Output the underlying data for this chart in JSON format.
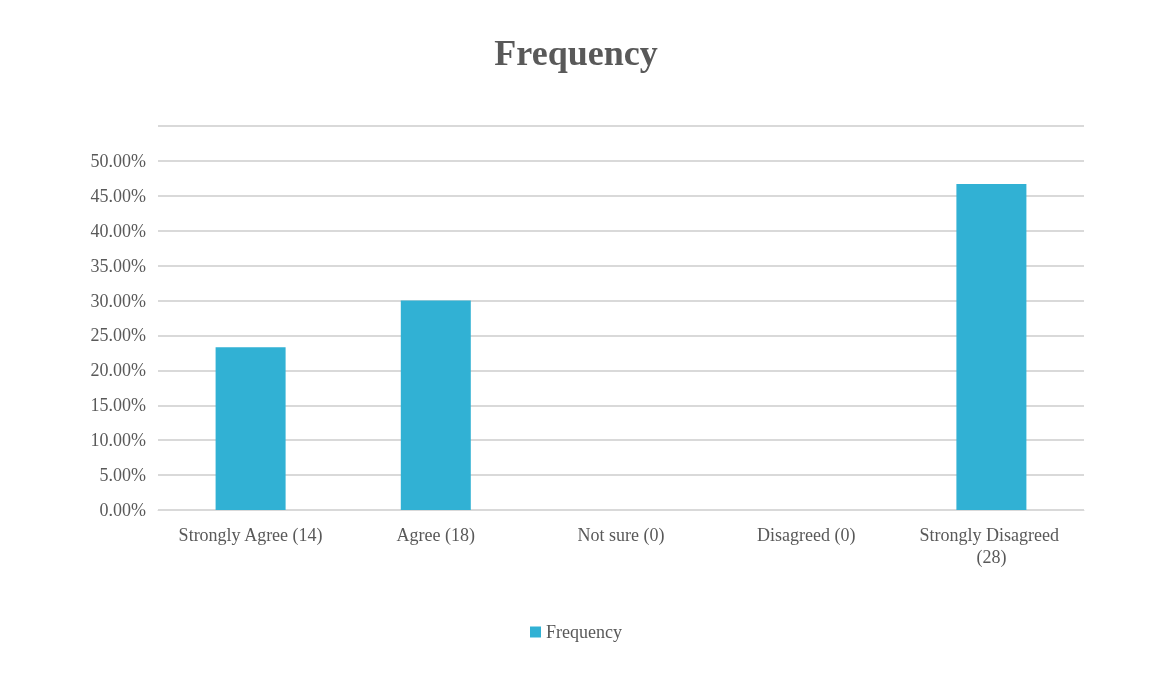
{
  "chart_data": {
    "type": "bar",
    "title": "Frequency",
    "categories": [
      "Strongly Agree (14)",
      "Agree (18)",
      "Not sure (0)",
      "Disagreed (0)",
      "Strongly Disagreed (28)"
    ],
    "series": [
      {
        "name": "Frequency",
        "color": "#31b1d4",
        "values": [
          23.3,
          30,
          0,
          0,
          46.7
        ]
      }
    ],
    "ylim": [
      0,
      55
    ],
    "yticks": [
      {
        "value": 0,
        "label": "0.00%"
      },
      {
        "value": 5,
        "label": "5.00%"
      },
      {
        "value": 10,
        "label": "10.00%"
      },
      {
        "value": 15,
        "label": "15.00%"
      },
      {
        "value": 20,
        "label": "20.00%"
      },
      {
        "value": 25,
        "label": "25.00%"
      },
      {
        "value": 30,
        "label": "30.00%"
      },
      {
        "value": 35,
        "label": "35.00%"
      },
      {
        "value": 40,
        "label": "40.00%"
      },
      {
        "value": 45,
        "label": "45.00%"
      },
      {
        "value": 50,
        "label": "50.00%"
      },
      {
        "value": 55,
        "label": null
      }
    ],
    "grid": "y",
    "legend": "bottom"
  }
}
